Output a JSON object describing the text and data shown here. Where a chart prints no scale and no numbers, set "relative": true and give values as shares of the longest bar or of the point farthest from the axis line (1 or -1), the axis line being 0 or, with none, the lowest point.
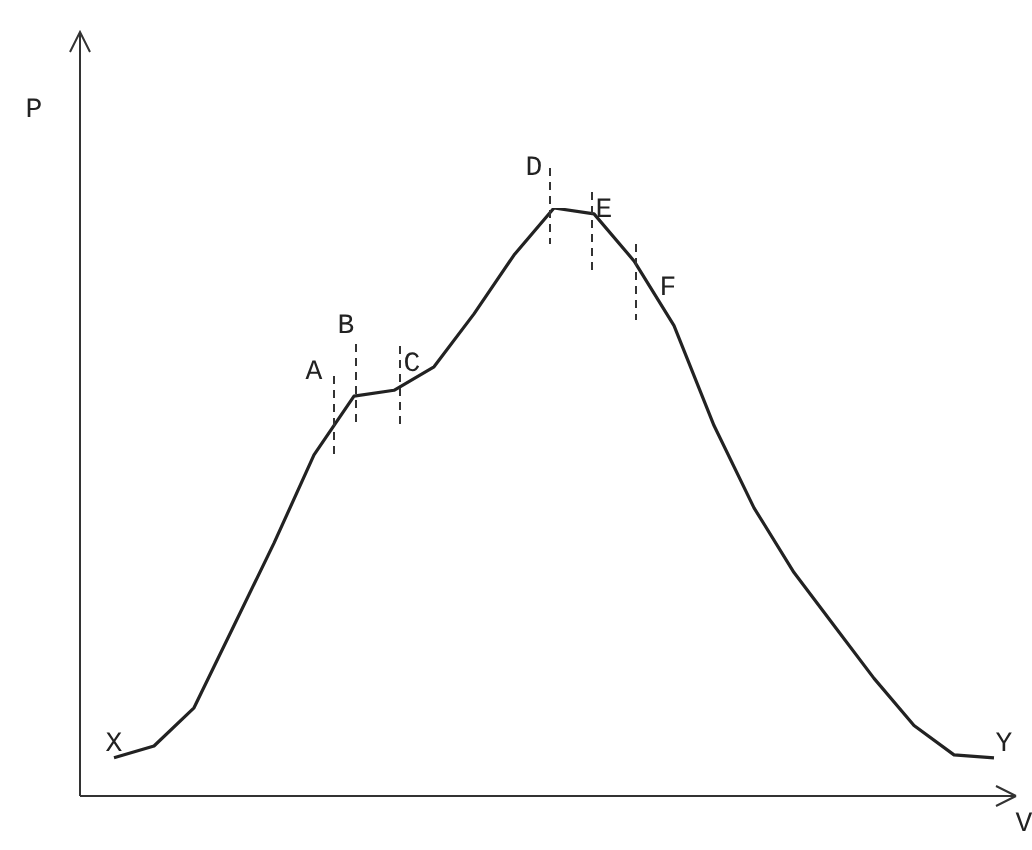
{
  "chart_data": {
    "type": "line",
    "relative": true,
    "xlabel": "V",
    "ylabel": "P",
    "categories": [
      null,
      null,
      null,
      null,
      null,
      null,
      null,
      null,
      null,
      null,
      null,
      null,
      null,
      null,
      null,
      null,
      null,
      null,
      null,
      null,
      null,
      null,
      null
    ],
    "grid": false,
    "legend": false,
    "marker": "none",
    "line_style": "solid",
    "series": [
      {
        "color": "#222222",
        "values": [
          0.065,
          0.085,
          0.15,
          0.29,
          0.43,
          0.58,
          0.68,
          0.69,
          0.73,
          0.82,
          0.92,
          1.0,
          0.99,
          0.91,
          0.8,
          0.63,
          0.49,
          0.38,
          0.29,
          0.2,
          0.12,
          0.07,
          0.065
        ]
      }
    ],
    "annotations": [
      "X",
      "A",
      "B",
      "C",
      "D",
      "E",
      "F",
      "Y"
    ]
  }
}
